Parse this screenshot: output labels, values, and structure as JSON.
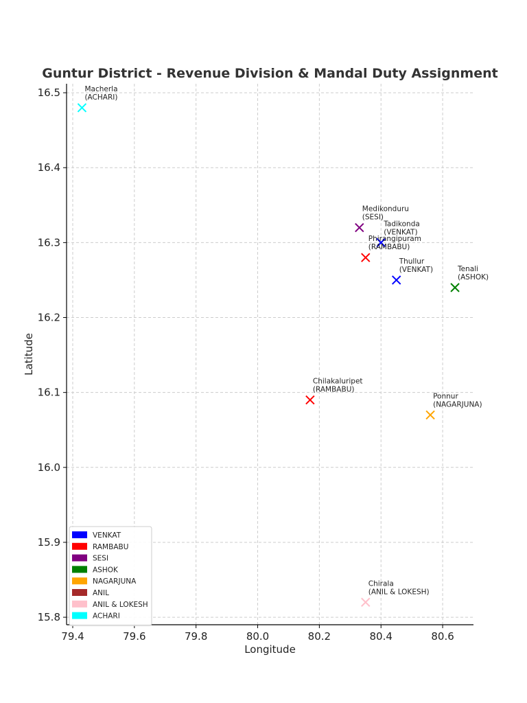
{
  "chart_data": {
    "type": "scatter",
    "title": "Guntur District - Revenue Division & Mandal Duty Assignment",
    "xlabel": "Longitude",
    "ylabel": "Latitude",
    "xlim": [
      79.38,
      80.7
    ],
    "ylim": [
      15.79,
      16.512
    ],
    "x_ticks": [
      79.4,
      79.6,
      79.8,
      80.0,
      80.2,
      80.4,
      80.6
    ],
    "x_tick_labels": [
      "79.4",
      "79.6",
      "79.8",
      "80.0",
      "80.2",
      "80.4",
      "80.6"
    ],
    "y_ticks": [
      15.8,
      15.9,
      16.0,
      16.1,
      16.2,
      16.3,
      16.4,
      16.5
    ],
    "y_tick_labels": [
      "15.8",
      "15.9",
      "16.0",
      "16.1",
      "16.2",
      "16.3",
      "16.4",
      "16.5"
    ],
    "grid": true,
    "marker": "x",
    "legend_position": "lower-left",
    "legend": [
      {
        "name": "VENKAT",
        "color": "#0000ff"
      },
      {
        "name": "RAMBABU",
        "color": "#ff0000"
      },
      {
        "name": "SESI",
        "color": "#800080"
      },
      {
        "name": "ASHOK",
        "color": "#008000"
      },
      {
        "name": "NAGARJUNA",
        "color": "#ffa500"
      },
      {
        "name": "ANIL",
        "color": "#a52a2a"
      },
      {
        "name": "ANIL & LOKESH",
        "color": "#ffc0cb"
      },
      {
        "name": "ACHARI",
        "color": "#00ffff"
      }
    ],
    "points": [
      {
        "name": "Macherla",
        "officer": "(ACHARI)",
        "x": 79.43,
        "y": 16.48,
        "color": "#00ffff"
      },
      {
        "name": "Medikonduru",
        "officer": "(SESI)",
        "x": 80.33,
        "y": 16.32,
        "color": "#800080"
      },
      {
        "name": "Tadikonda",
        "officer": "(VENKAT)",
        "x": 80.4,
        "y": 16.3,
        "color": "#0000ff"
      },
      {
        "name": "Phirangipuram",
        "officer": "(RAMBABU)",
        "x": 80.35,
        "y": 16.28,
        "color": "#ff0000"
      },
      {
        "name": "Thullur",
        "officer": "(VENKAT)",
        "x": 80.45,
        "y": 16.25,
        "color": "#0000ff"
      },
      {
        "name": "Tenali",
        "officer": "(ASHOK)",
        "x": 80.64,
        "y": 16.24,
        "color": "#008000"
      },
      {
        "name": "Chilakaluripet",
        "officer": "(RAMBABU)",
        "x": 80.17,
        "y": 16.09,
        "color": "#ff0000"
      },
      {
        "name": "Ponnur",
        "officer": "(NAGARJUNA)",
        "x": 80.56,
        "y": 16.07,
        "color": "#ffa500"
      },
      {
        "name": "Chirala",
        "officer": "(ANIL & LOKESH)",
        "x": 80.35,
        "y": 15.82,
        "color": "#ffc0cb"
      }
    ]
  }
}
